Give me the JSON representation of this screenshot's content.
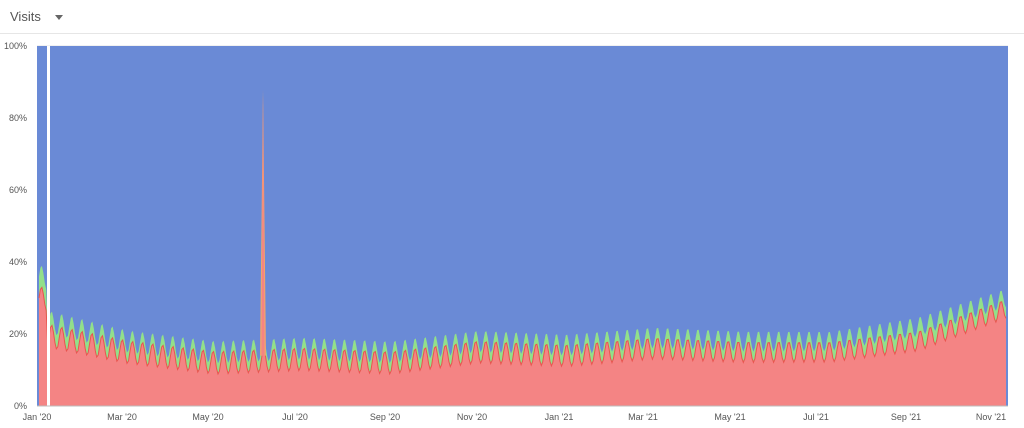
{
  "header": {
    "metric_label": "Visits",
    "dropdown_icon": "caret-down-icon"
  },
  "colors": {
    "blue": "#6a8ad6",
    "green": "#92e08a",
    "orange": "#f2a36c",
    "red": "#f48484",
    "line_red": "#e8554f"
  },
  "chart_data": {
    "type": "area",
    "stacked": true,
    "normalized": true,
    "ylim": [
      0,
      100
    ],
    "y_ticks": [
      "0%",
      "20%",
      "40%",
      "60%",
      "80%",
      "100%"
    ],
    "x_ticks": [
      "Jan '20",
      "Mar '20",
      "May '20",
      "Jul '20",
      "Sep '20",
      "Nov '20",
      "Jan '21",
      "Mar '21",
      "May '21",
      "Jul '21",
      "Sep '21",
      "Nov '21"
    ],
    "grid": true,
    "series_description": "Daily share of visits (stacked to 100%): blue top layer, thin green and orange layers, red bottom layer",
    "bottom_layer_trend": {
      "x": [
        "Jan '20",
        "Mar '20",
        "May '20",
        "Jul '20",
        "Sep '20",
        "Nov '20",
        "Jan '21",
        "Mar '21",
        "May '21",
        "Jul '21",
        "Sep '21",
        "Nov '21"
      ],
      "red_percent": [
        20,
        15,
        12,
        13,
        12,
        15,
        14,
        16,
        15,
        15,
        18,
        27
      ],
      "green_top_percent": [
        24,
        18,
        15,
        16,
        15,
        18,
        17,
        19,
        18,
        18,
        22,
        30
      ]
    },
    "spike": {
      "x": "Jun '20",
      "percent": 88
    }
  }
}
